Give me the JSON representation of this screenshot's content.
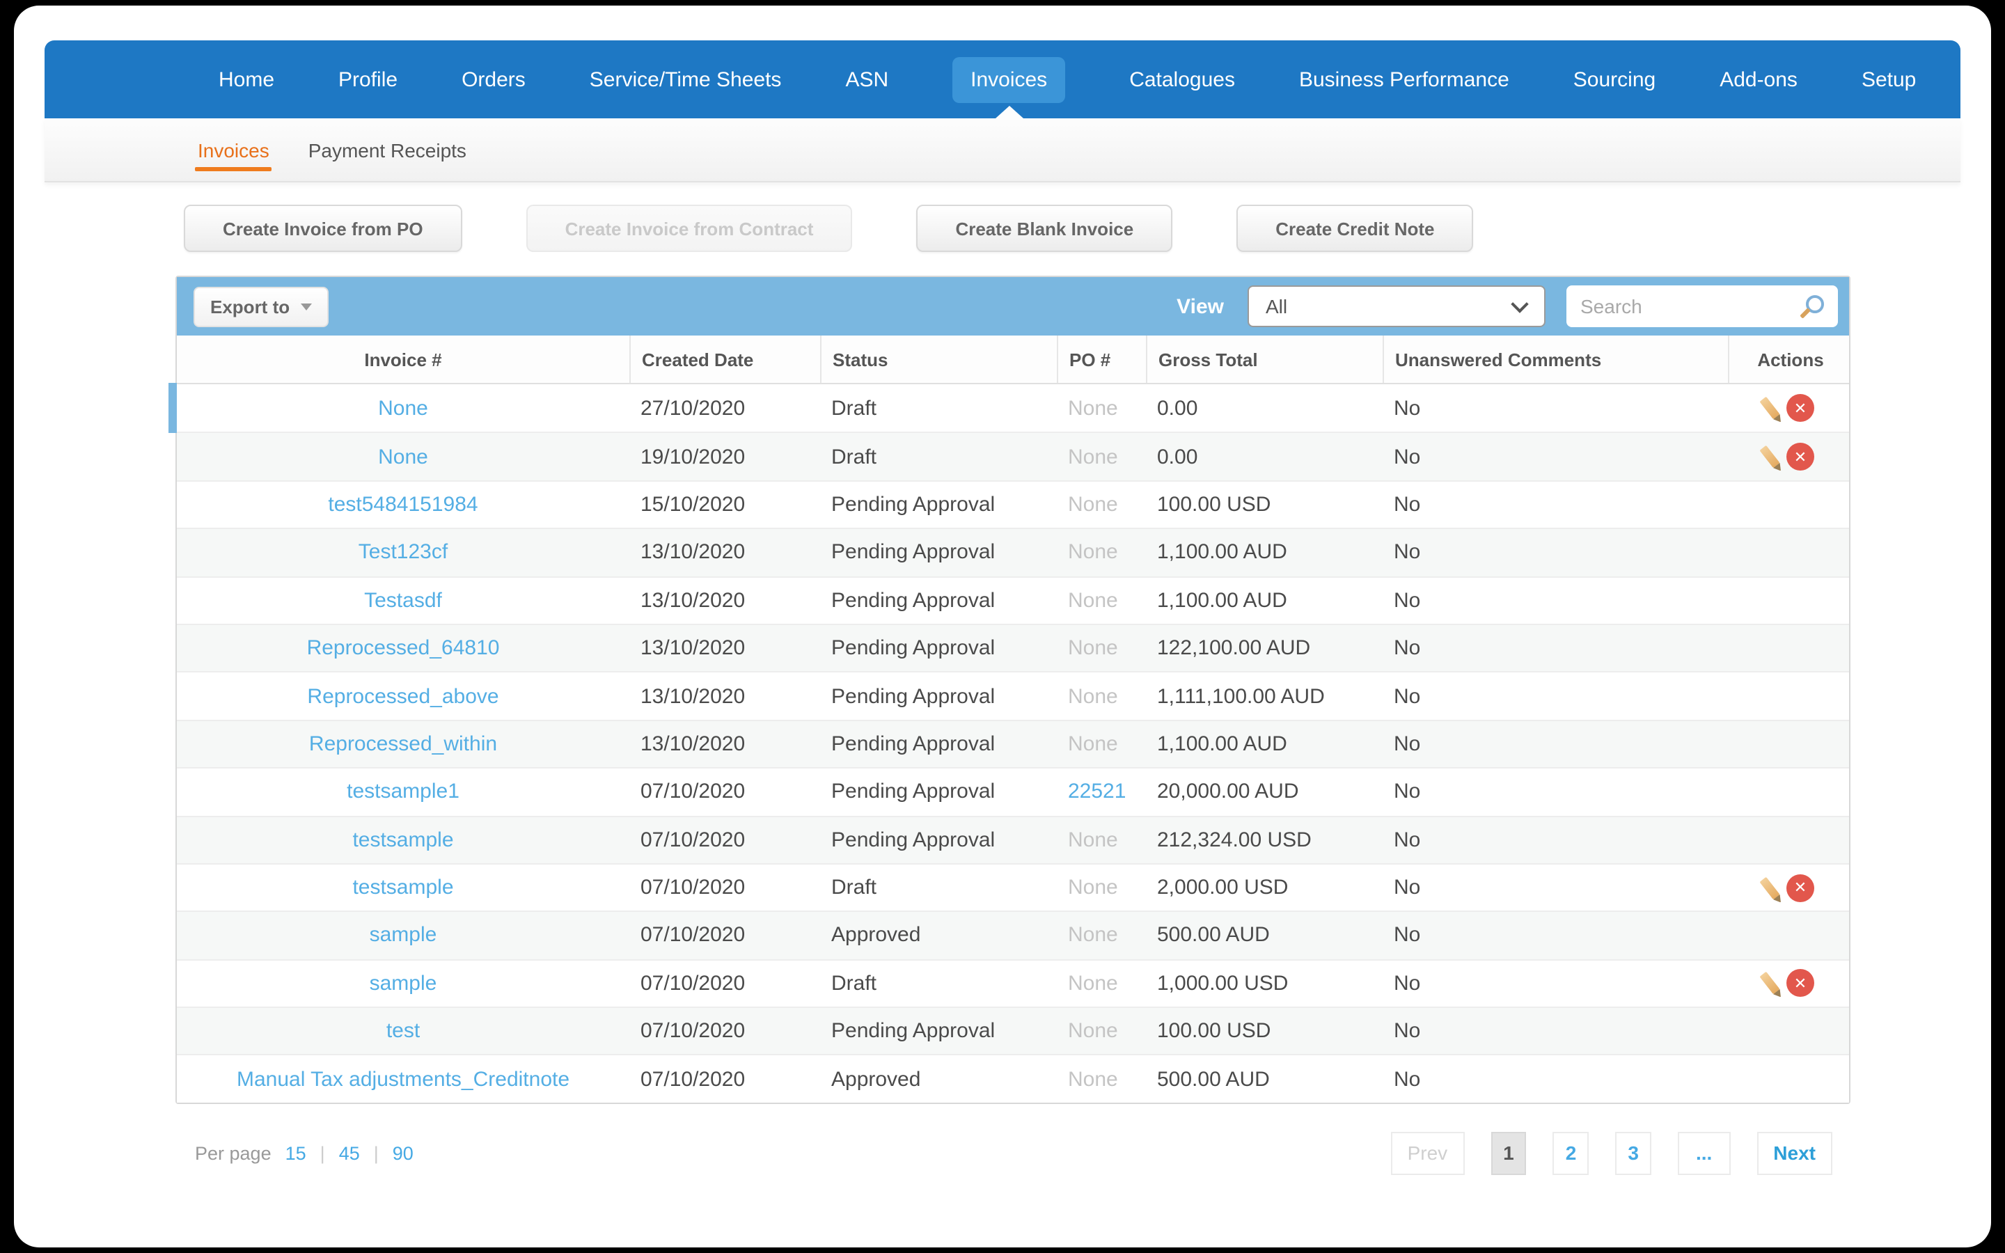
{
  "navbar": {
    "items": [
      {
        "label": "Home",
        "active": false
      },
      {
        "label": "Profile",
        "active": false
      },
      {
        "label": "Orders",
        "active": false
      },
      {
        "label": "Service/Time Sheets",
        "active": false
      },
      {
        "label": "ASN",
        "active": false
      },
      {
        "label": "Invoices",
        "active": true
      },
      {
        "label": "Catalogues",
        "active": false
      },
      {
        "label": "Business Performance",
        "active": false
      },
      {
        "label": "Sourcing",
        "active": false
      },
      {
        "label": "Add-ons",
        "active": false
      },
      {
        "label": "Setup",
        "active": false
      }
    ]
  },
  "subnav": {
    "tabs": [
      {
        "label": "Invoices",
        "active": true
      },
      {
        "label": "Payment Receipts",
        "active": false
      }
    ]
  },
  "action_buttons": [
    {
      "label": "Create Invoice from PO",
      "disabled": false
    },
    {
      "label": "Create Invoice from Contract",
      "disabled": true
    },
    {
      "label": "Create Blank Invoice",
      "disabled": false
    },
    {
      "label": "Create Credit Note",
      "disabled": false
    }
  ],
  "toolbar": {
    "export_label": "Export to",
    "view_label": "View",
    "view_selected": "All",
    "search_placeholder": "Search"
  },
  "table": {
    "columns": [
      "Invoice #",
      "Created Date",
      "Status",
      "PO #",
      "Gross Total",
      "Unanswered Comments",
      "Actions"
    ],
    "rows": [
      {
        "invoice": "None",
        "created": "27/10/2020",
        "status": "Draft",
        "po": "None",
        "po_link": false,
        "gross": "0.00",
        "comments": "No",
        "actions": true,
        "highlighted": true
      },
      {
        "invoice": "None",
        "created": "19/10/2020",
        "status": "Draft",
        "po": "None",
        "po_link": false,
        "gross": "0.00",
        "comments": "No",
        "actions": true,
        "highlighted": false
      },
      {
        "invoice": "test5484151984",
        "created": "15/10/2020",
        "status": "Pending Approval",
        "po": "None",
        "po_link": false,
        "gross": "100.00 USD",
        "comments": "No",
        "actions": false,
        "highlighted": false
      },
      {
        "invoice": "Test123cf",
        "created": "13/10/2020",
        "status": "Pending Approval",
        "po": "None",
        "po_link": false,
        "gross": "1,100.00 AUD",
        "comments": "No",
        "actions": false,
        "highlighted": false
      },
      {
        "invoice": "Testasdf",
        "created": "13/10/2020",
        "status": "Pending Approval",
        "po": "None",
        "po_link": false,
        "gross": "1,100.00 AUD",
        "comments": "No",
        "actions": false,
        "highlighted": false
      },
      {
        "invoice": "Reprocessed_64810",
        "created": "13/10/2020",
        "status": "Pending Approval",
        "po": "None",
        "po_link": false,
        "gross": "122,100.00 AUD",
        "comments": "No",
        "actions": false,
        "highlighted": false
      },
      {
        "invoice": "Reprocessed_above",
        "created": "13/10/2020",
        "status": "Pending Approval",
        "po": "None",
        "po_link": false,
        "gross": "1,111,100.00 AUD",
        "comments": "No",
        "actions": false,
        "highlighted": false
      },
      {
        "invoice": "Reprocessed_within",
        "created": "13/10/2020",
        "status": "Pending Approval",
        "po": "None",
        "po_link": false,
        "gross": "1,100.00 AUD",
        "comments": "No",
        "actions": false,
        "highlighted": false
      },
      {
        "invoice": "testsample1",
        "created": "07/10/2020",
        "status": "Pending Approval",
        "po": "22521",
        "po_link": true,
        "gross": "20,000.00 AUD",
        "comments": "No",
        "actions": false,
        "highlighted": false
      },
      {
        "invoice": "testsample",
        "created": "07/10/2020",
        "status": "Pending Approval",
        "po": "None",
        "po_link": false,
        "gross": "212,324.00 USD",
        "comments": "No",
        "actions": false,
        "highlighted": false
      },
      {
        "invoice": "testsample",
        "created": "07/10/2020",
        "status": "Draft",
        "po": "None",
        "po_link": false,
        "gross": "2,000.00 USD",
        "comments": "No",
        "actions": true,
        "highlighted": false
      },
      {
        "invoice": "sample",
        "created": "07/10/2020",
        "status": "Approved",
        "po": "None",
        "po_link": false,
        "gross": "500.00 AUD",
        "comments": "No",
        "actions": false,
        "highlighted": false
      },
      {
        "invoice": "sample",
        "created": "07/10/2020",
        "status": "Draft",
        "po": "None",
        "po_link": false,
        "gross": "1,000.00 USD",
        "comments": "No",
        "actions": true,
        "highlighted": false
      },
      {
        "invoice": "test",
        "created": "07/10/2020",
        "status": "Pending Approval",
        "po": "None",
        "po_link": false,
        "gross": "100.00 USD",
        "comments": "No",
        "actions": false,
        "highlighted": false
      },
      {
        "invoice": "Manual Tax adjustments_Creditnote",
        "created": "07/10/2020",
        "status": "Approved",
        "po": "None",
        "po_link": false,
        "gross": "500.00 AUD",
        "comments": "No",
        "actions": false,
        "highlighted": false
      }
    ]
  },
  "pagination": {
    "per_page_label": "Per page",
    "per_page_options": [
      "15",
      "45",
      "90"
    ],
    "prev_label": "Prev",
    "pages": [
      "1",
      "2",
      "3",
      "..."
    ],
    "active_page": "1",
    "next_label": "Next"
  },
  "icons": {
    "export_caret": "caret-down",
    "view_chevron": "chevron-down",
    "search": "magnifier",
    "edit": "pencil",
    "delete": "circle-x",
    "delete_glyph": "✕"
  },
  "colors": {
    "nav_blue": "#1e78c4",
    "active_tab_blue": "#3b95d8",
    "toolbar_blue": "#7ab7e0",
    "link_blue": "#54aee4",
    "tab_orange": "#e8701a",
    "delete_red": "#e2574c",
    "pencil_tan": "#e5ab61",
    "highlight_bar_blue": "#7ab7e0"
  }
}
